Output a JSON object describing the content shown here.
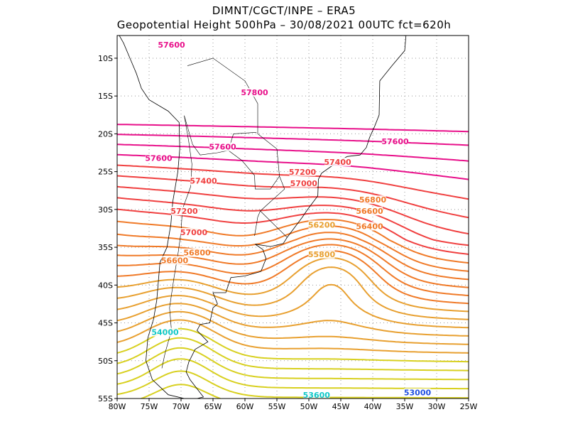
{
  "header": {
    "line1": "DIMNT/CGCT/INPE –  ERA5",
    "line2": "Geopotential Height 500hPa –  30/08/2021 00UTC fct=620h"
  },
  "axes": {
    "lon_ticks": [
      "80W",
      "75W",
      "70W",
      "65W",
      "60W",
      "55W",
      "50W",
      "45W",
      "40W",
      "35W",
      "30W",
      "25W"
    ],
    "lat_ticks": [
      "10S",
      "15S",
      "20S",
      "25S",
      "30S",
      "35S",
      "40S",
      "45S",
      "50S",
      "55S"
    ],
    "lon_range": [
      -80,
      -25
    ],
    "lat_range": [
      -55,
      -7
    ],
    "grid": "dotted 5 degree"
  },
  "colors": {
    "high": "#e8108a",
    "mid_red": "#f04040",
    "orange": "#f07a28",
    "light_orange": "#e8a030",
    "yellow": "#d8d020",
    "green": "#28c828",
    "cyan": "#10c8c8",
    "blue": "#2050e0",
    "purple": "#8010c0"
  },
  "contour_labels": [
    {
      "text": "57600",
      "lon": -71.5,
      "lat": -8.5
    },
    {
      "text": "57800",
      "lon": -58.5,
      "lat": -14.8
    },
    {
      "text": "57600",
      "lon": -73.5,
      "lat": -23.5
    },
    {
      "text": "57600",
      "lon": -63.5,
      "lat": -22.0
    },
    {
      "text": "57600",
      "lon": -36.5,
      "lat": -21.3
    },
    {
      "text": "57400",
      "lon": -66.5,
      "lat": -26.5
    },
    {
      "text": "57400",
      "lon": -45.5,
      "lat": -24.0
    },
    {
      "text": "57200",
      "lon": -69.5,
      "lat": -30.5
    },
    {
      "text": "57200",
      "lon": -51.0,
      "lat": -25.3
    },
    {
      "text": "57000",
      "lon": -68.0,
      "lat": -33.3
    },
    {
      "text": "57000",
      "lon": -50.8,
      "lat": -26.8
    },
    {
      "text": "56800",
      "lon": -67.5,
      "lat": -36.0
    },
    {
      "text": "56800",
      "lon": -40.0,
      "lat": -29.0
    },
    {
      "text": "56600",
      "lon": -71.0,
      "lat": -37.0
    },
    {
      "text": "56600",
      "lon": -40.5,
      "lat": -30.5
    },
    {
      "text": "56400",
      "lon": -40.5,
      "lat": -32.5
    },
    {
      "text": "56200",
      "lon": -48.0,
      "lat": -32.3
    },
    {
      "text": "55800",
      "lon": -48.0,
      "lat": -36.2
    },
    {
      "text": "54000",
      "lon": -72.5,
      "lat": -46.5
    },
    {
      "text": "53600",
      "lon": -48.8,
      "lat": -54.8
    },
    {
      "text": "53000",
      "lon": -33.0,
      "lat": -54.5
    }
  ]
}
